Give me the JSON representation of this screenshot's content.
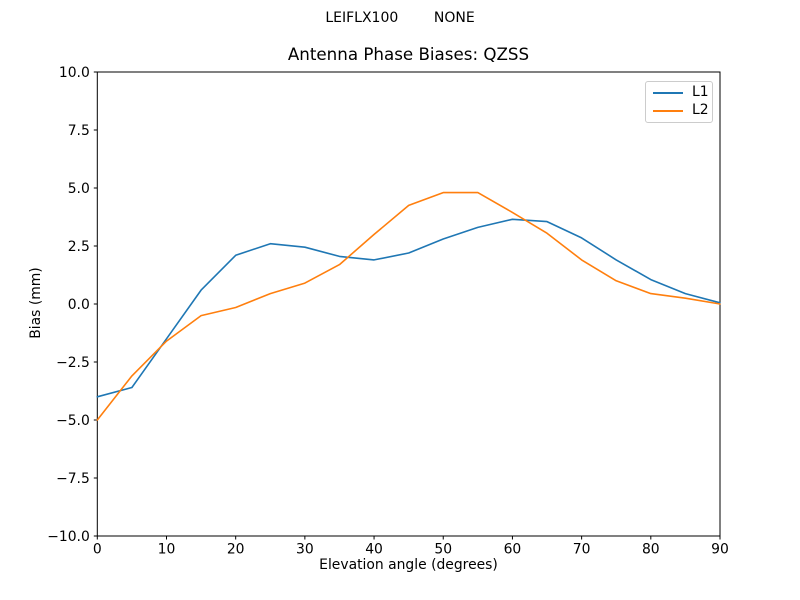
{
  "figure": {
    "suptitle": "LEIFLX100        NONE",
    "background_color": "#ffffff",
    "spine_color": "#000000",
    "legend": {
      "position": "upper right",
      "entries": [
        {
          "label": "L1",
          "color": "#1f77b4"
        },
        {
          "label": "L2",
          "color": "#ff7f0e"
        }
      ]
    }
  },
  "chart_data": {
    "type": "line",
    "title": "Antenna Phase Biases: QZSS",
    "xlabel": "Elevation angle (degrees)",
    "ylabel": "Bias (mm)",
    "xlim": [
      0,
      90
    ],
    "ylim": [
      -10,
      10
    ],
    "grid": false,
    "legend_position": "upper right",
    "x_tick_labels": [
      "0",
      "10",
      "20",
      "30",
      "40",
      "50",
      "60",
      "70",
      "80",
      "90"
    ],
    "x_tick_values": [
      0,
      10,
      20,
      30,
      40,
      50,
      60,
      70,
      80,
      90
    ],
    "y_tick_labels": [
      "10.0",
      "7.5",
      "5.0",
      "2.5",
      "0.0",
      "−2.5",
      "−5.0",
      "−7.5",
      "−10.0"
    ],
    "y_tick_values": [
      10,
      7.5,
      5,
      2.5,
      0,
      -2.5,
      -5,
      -7.5,
      -10
    ],
    "x": [
      0,
      5,
      10,
      15,
      20,
      25,
      30,
      35,
      40,
      45,
      50,
      55,
      60,
      65,
      70,
      75,
      80,
      85,
      90
    ],
    "series": [
      {
        "name": "L1",
        "color": "#1f77b4",
        "values": [
          -4.0,
          -3.6,
          -1.5,
          0.6,
          2.1,
          2.6,
          2.45,
          2.05,
          1.9,
          2.2,
          2.8,
          3.3,
          3.65,
          3.55,
          2.85,
          1.9,
          1.05,
          0.45,
          0.05
        ]
      },
      {
        "name": "L2",
        "color": "#ff7f0e",
        "values": [
          -5.0,
          -3.1,
          -1.6,
          -0.5,
          -0.15,
          0.45,
          0.9,
          1.7,
          3.0,
          4.25,
          4.8,
          4.8,
          3.95,
          3.05,
          1.9,
          1.0,
          0.45,
          0.25,
          0.0
        ]
      }
    ]
  }
}
